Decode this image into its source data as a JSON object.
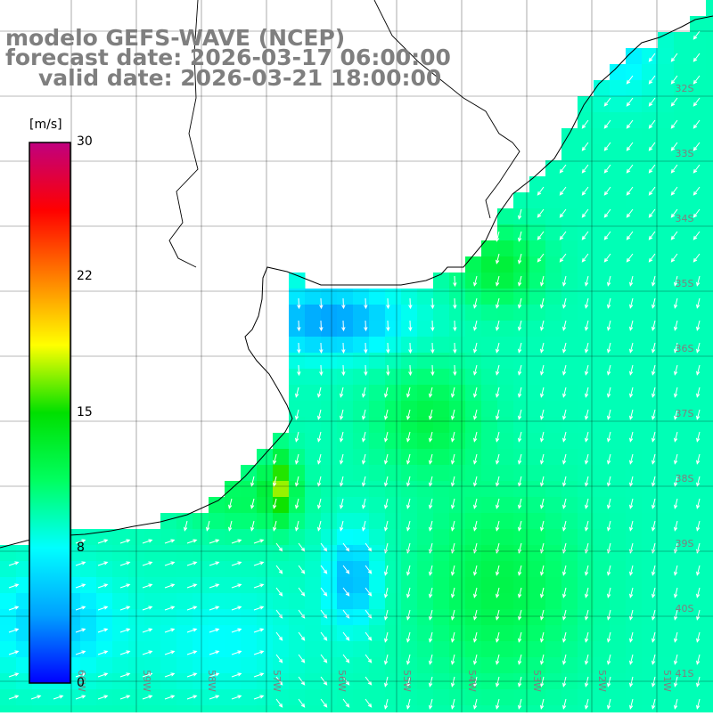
{
  "title": {
    "line1": "modelo GEFS-WAVE (NCEP)",
    "line2": "forecast date: 2026-03-17 06:00:00",
    "line3": "valid date: 2026-03-21 18:00:00"
  },
  "colorbar": {
    "units": "[m/s]",
    "ticks": [
      "30",
      "22",
      "15",
      "8",
      "0"
    ],
    "tick_values": [
      30,
      22,
      15,
      8,
      0
    ],
    "min": 0,
    "max": 30,
    "stops": [
      "#0000ff",
      "#00a0ff",
      "#00ffff",
      "#00ff60",
      "#00e000",
      "#ffff00",
      "#ff8000",
      "#ff0000",
      "#c0007f"
    ]
  },
  "lat_labels": [
    "32S",
    "33S",
    "34S",
    "35S",
    "36S",
    "37S",
    "38S",
    "39S",
    "40S",
    "41S"
  ],
  "lon_labels": [
    "60W",
    "59W",
    "58W",
    "57W",
    "56W",
    "55W",
    "54W",
    "53W",
    "52W",
    "51W"
  ],
  "colors": {
    "land": "#ffffff",
    "grid": "#000000",
    "coast": "#000000",
    "arrow": "#ffffff",
    "label_gray": "#7f7f7f"
  }
}
